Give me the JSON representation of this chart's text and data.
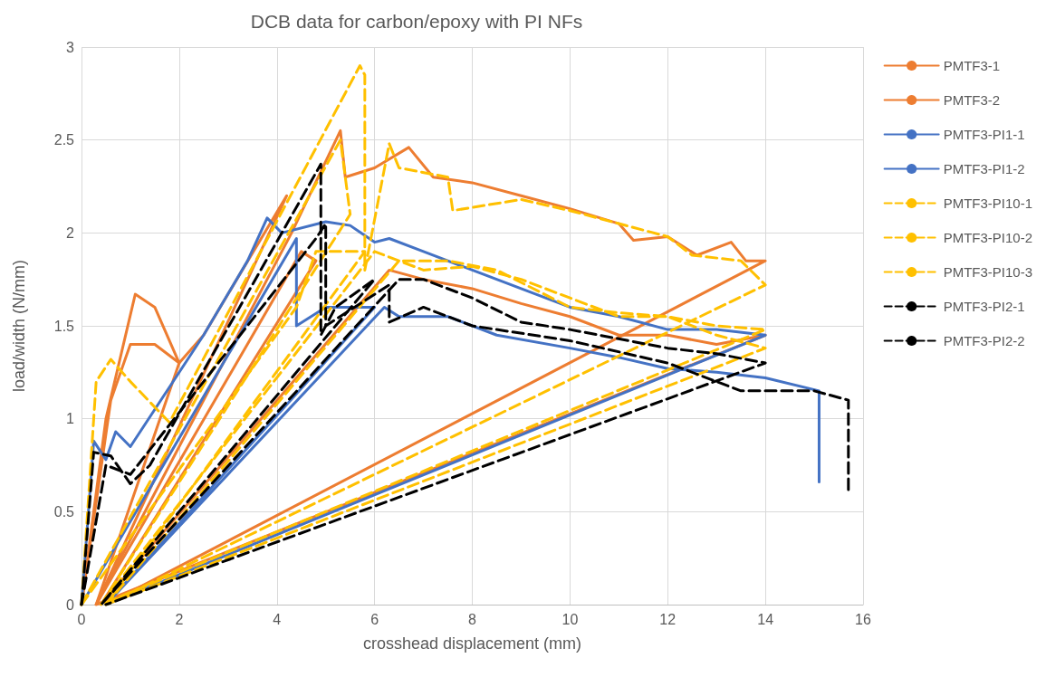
{
  "chart_data": {
    "type": "line",
    "title": "DCB data for carbon/epoxy with PI NFs",
    "xlabel": "crosshead displacement (mm)",
    "ylabel": "load/width (N/mm)",
    "xlim": [
      0,
      16
    ],
    "xticks": [
      0,
      2,
      4,
      6,
      8,
      10,
      12,
      14,
      16
    ],
    "ylim": [
      0,
      3
    ],
    "yticks": [
      0,
      0.5,
      1,
      1.5,
      2,
      2.5,
      3
    ],
    "grid": true,
    "legend": "right",
    "marker": "none",
    "series": [
      {
        "name": "PMTF3-1",
        "color": "#ed7d31",
        "line_style": "solid",
        "x": [
          0,
          0.5,
          1.1,
          1.5,
          2.0,
          2.5,
          4.2,
          0.3,
          4.3,
          5.3,
          5.4,
          6.0,
          6.7,
          7.2,
          8.0,
          9.0,
          10.0,
          11.0,
          11.3,
          12.0,
          12.6,
          13.3,
          13.6,
          14.0,
          0.5
        ],
        "values": [
          0,
          1.0,
          1.67,
          1.6,
          1.3,
          1.45,
          2.2,
          0,
          2.0,
          2.55,
          2.3,
          2.35,
          2.46,
          2.3,
          2.27,
          2.2,
          2.13,
          2.05,
          1.96,
          1.98,
          1.88,
          1.95,
          1.85,
          1.85,
          0
        ]
      },
      {
        "name": "PMTF3-2",
        "color": "#ed7d31",
        "line_style": "solid",
        "x": [
          0,
          0.6,
          1.0,
          1.5,
          2.0,
          0.3,
          4.5,
          4.8,
          0.4,
          6.3,
          7.0,
          8.0,
          9.0,
          10.0,
          10.5,
          11.0,
          12.0,
          13.0,
          14.0,
          0.3
        ],
        "values": [
          0,
          1.1,
          1.4,
          1.4,
          1.3,
          0,
          1.9,
          1.85,
          0,
          1.8,
          1.75,
          1.7,
          1.62,
          1.55,
          1.5,
          1.45,
          1.45,
          1.4,
          1.45,
          0
        ]
      },
      {
        "name": "PMTF3-PI1-1",
        "color": "#4472c4",
        "line_style": "solid",
        "x": [
          0,
          0.25,
          0.5,
          0.7,
          1.0,
          2.5,
          3.4,
          3.8,
          4.1,
          5.0,
          5.5,
          6.0,
          6.3,
          7.0,
          8.0,
          9.0,
          10.0,
          11.0,
          12.0,
          13.0,
          14.0,
          0.5
        ],
        "values": [
          0,
          0.88,
          0.78,
          0.93,
          0.85,
          1.45,
          1.85,
          2.08,
          2.0,
          2.06,
          2.04,
          1.95,
          1.97,
          1.9,
          1.8,
          1.7,
          1.6,
          1.55,
          1.48,
          1.48,
          1.45,
          0
        ]
      },
      {
        "name": "PMTF3-PI1-2",
        "color": "#4472c4",
        "line_style": "solid",
        "x": [
          0,
          4.4,
          4.4,
          5.0,
          6.0,
          0.5,
          6.2,
          6.5,
          7.5,
          8.5,
          10.0,
          11.0,
          12.0,
          13.0,
          14.0,
          15.1,
          15.1
        ],
        "values": [
          0,
          1.97,
          1.5,
          1.6,
          1.6,
          0,
          1.6,
          1.55,
          1.55,
          1.45,
          1.38,
          1.33,
          1.27,
          1.25,
          1.22,
          1.15,
          0.66
        ]
      },
      {
        "name": "PMTF3-PI10-1",
        "color": "#ffc000",
        "line_style": "dashed",
        "x": [
          0,
          0.3,
          0.6,
          1.0,
          1.8,
          5.7,
          5.8,
          5.8,
          6.3,
          6.5,
          7.5,
          7.6,
          9.0,
          10.0,
          11.0,
          12.0,
          12.5,
          13.5,
          14.0,
          0.5
        ],
        "values": [
          0,
          1.2,
          1.32,
          1.2,
          0.98,
          2.9,
          2.85,
          1.8,
          2.48,
          2.35,
          2.3,
          2.12,
          2.18,
          2.12,
          2.05,
          1.98,
          1.88,
          1.85,
          1.72,
          0
        ]
      },
      {
        "name": "PMTF3-PI10-2",
        "color": "#ffc000",
        "line_style": "dashed",
        "x": [
          0,
          5.3,
          5.5,
          0.4,
          6.0,
          7.0,
          8.0,
          9.0,
          10.0,
          11.0,
          12.0,
          13.0,
          14.0,
          0.4
        ],
        "values": [
          0,
          2.5,
          2.1,
          0,
          1.9,
          1.8,
          1.82,
          1.75,
          1.65,
          1.55,
          1.55,
          1.5,
          1.48,
          0
        ]
      },
      {
        "name": "PMTF3-PI10-3",
        "color": "#ffc000",
        "line_style": "dashed",
        "x": [
          0,
          4.4,
          4.8,
          5.8,
          0.5,
          6.5,
          7.5,
          8.5,
          10.0,
          11.0,
          12.0,
          13.0,
          14.0,
          0.5
        ],
        "values": [
          0,
          1.6,
          1.9,
          1.9,
          0,
          1.85,
          1.85,
          1.8,
          1.6,
          1.57,
          1.55,
          1.45,
          1.38,
          0
        ]
      },
      {
        "name": "PMTF3-PI2-1",
        "color": "#000000",
        "line_style": "dashed",
        "x": [
          0,
          0.25,
          0.6,
          1.0,
          1.4,
          4.9,
          4.9,
          5.2,
          6.0,
          0.4,
          6.5,
          7.0,
          8.0,
          9.0,
          10.0,
          12.0,
          13.0,
          14.0,
          0.5
        ],
        "values": [
          0,
          0.82,
          0.8,
          0.65,
          0.75,
          2.37,
          1.45,
          1.6,
          1.75,
          0,
          1.75,
          1.75,
          1.65,
          1.52,
          1.48,
          1.38,
          1.35,
          1.3,
          0
        ]
      },
      {
        "name": "PMTF3-PI2-2",
        "color": "#000000",
        "line_style": "dashed",
        "x": [
          0,
          0.5,
          1.0,
          2.5,
          4.8,
          5.0,
          5.0,
          6.3,
          6.3,
          7.0,
          8.0,
          10.0,
          12.0,
          13.5,
          15.0,
          15.7,
          15.7
        ],
        "values": [
          0,
          0.75,
          0.7,
          1.2,
          1.97,
          2.05,
          1.5,
          1.72,
          1.52,
          1.6,
          1.5,
          1.42,
          1.3,
          1.15,
          1.15,
          1.1,
          0.6
        ]
      }
    ]
  }
}
